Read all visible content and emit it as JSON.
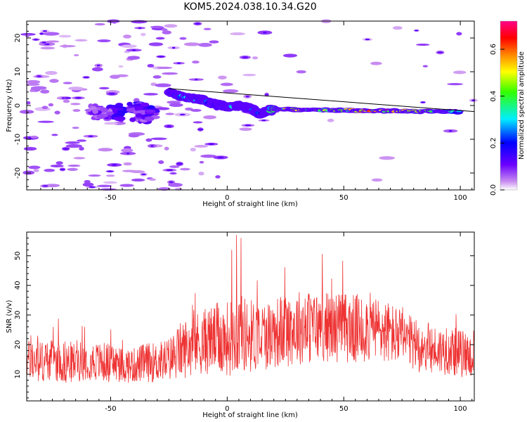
{
  "figure": {
    "title": "KOM5.2024.038.10.34.G20"
  },
  "chart_data": [
    {
      "type": "heatmap",
      "xlabel": "Height of straight line (km)",
      "ylabel": "Frequency (Hz)",
      "xlim": [
        -86,
        106
      ],
      "ylim": [
        -25,
        25
      ],
      "xticks": [
        -50,
        0,
        50,
        100
      ],
      "yticks": [
        -20,
        -10,
        0,
        10,
        20
      ],
      "colorbar": {
        "label": "Normalized spectral amplitude",
        "range": [
          0,
          0.72
        ],
        "ticks": [
          0.0,
          0.2,
          0.4,
          0.6
        ],
        "colormap": "rainbow (violet-blue-cyan-green-yellow-orange-red-pink)"
      },
      "trend_line": {
        "x": [
          -25,
          106
        ],
        "y": [
          5,
          -1.8
        ]
      },
      "ridge_points": [
        {
          "x": -25,
          "y": 4.0,
          "amp": 0.15
        },
        {
          "x": -18,
          "y": 2.5,
          "amp": 0.3
        },
        {
          "x": -12,
          "y": 1.8,
          "amp": 0.35
        },
        {
          "x": -5,
          "y": 0.3,
          "amp": 0.2
        },
        {
          "x": 0,
          "y": -0.3,
          "amp": 0.25
        },
        {
          "x": 5,
          "y": 0.0,
          "amp": 0.35
        },
        {
          "x": 10,
          "y": -0.8,
          "amp": 0.3
        },
        {
          "x": 14,
          "y": -2.5,
          "amp": 0.2
        },
        {
          "x": 20,
          "y": -1.0,
          "amp": 0.45
        },
        {
          "x": 30,
          "y": -1.2,
          "amp": 0.55
        },
        {
          "x": 40,
          "y": -1.3,
          "amp": 0.5
        },
        {
          "x": 50,
          "y": -1.5,
          "amp": 0.45
        },
        {
          "x": 60,
          "y": -1.6,
          "amp": 0.6
        },
        {
          "x": 70,
          "y": -1.6,
          "amp": 0.62
        },
        {
          "x": 80,
          "y": -1.7,
          "amp": 0.5
        },
        {
          "x": 90,
          "y": -1.8,
          "amp": 0.35
        },
        {
          "x": 100,
          "y": -1.8,
          "amp": 0.3
        }
      ],
      "noise_clusters": [
        {
          "x": -48,
          "y": -2,
          "amp": 0.15
        },
        {
          "x": -38,
          "y": -1,
          "amp": 0.15
        },
        {
          "x": -55,
          "y": -2,
          "amp": 0.1
        },
        {
          "x": -35,
          "y": -3,
          "amp": 0.12
        }
      ]
    },
    {
      "type": "line",
      "xlabel": "Height of straight line (km)",
      "ylabel": "SNR (v/v)",
      "xlim": [
        -86,
        106
      ],
      "ylim": [
        1,
        58
      ],
      "xticks": [
        -50,
        0,
        50,
        100
      ],
      "yticks": [
        10,
        20,
        30,
        40,
        50
      ],
      "color": "#ee3333",
      "series": [
        {
          "x": [
            -86,
            -80,
            -75,
            -70,
            -65,
            -60,
            -55,
            -50,
            -45,
            -40,
            -35,
            -30,
            -25,
            -20,
            -15,
            -10,
            -5,
            0,
            5,
            10,
            15,
            20,
            25,
            30,
            35,
            40,
            45,
            50,
            55,
            60,
            65,
            70,
            75,
            80,
            85,
            90,
            95,
            100,
            106
          ],
          "values": [
            15,
            14,
            15,
            14,
            14,
            15,
            14,
            14,
            13,
            13,
            14,
            14,
            15,
            18,
            20,
            21,
            22,
            22,
            24,
            23,
            23,
            24,
            25,
            26,
            26,
            26,
            26,
            26,
            25,
            26,
            25,
            24,
            22,
            20,
            19,
            18,
            18,
            17,
            16
          ],
          "spread": [
            9,
            10,
            9,
            10,
            9,
            9,
            9,
            9,
            8,
            8,
            9,
            9,
            10,
            13,
            14,
            15,
            16,
            17,
            18,
            17,
            16,
            16,
            17,
            17,
            17,
            16,
            16,
            16,
            16,
            16,
            15,
            14,
            13,
            12,
            12,
            11,
            11,
            11,
            10
          ],
          "peaks": [
            {
              "x": 4,
              "y": 57
            },
            {
              "x": 6,
              "y": 56
            },
            {
              "x": 2,
              "y": 52
            }
          ]
        }
      ]
    }
  ]
}
